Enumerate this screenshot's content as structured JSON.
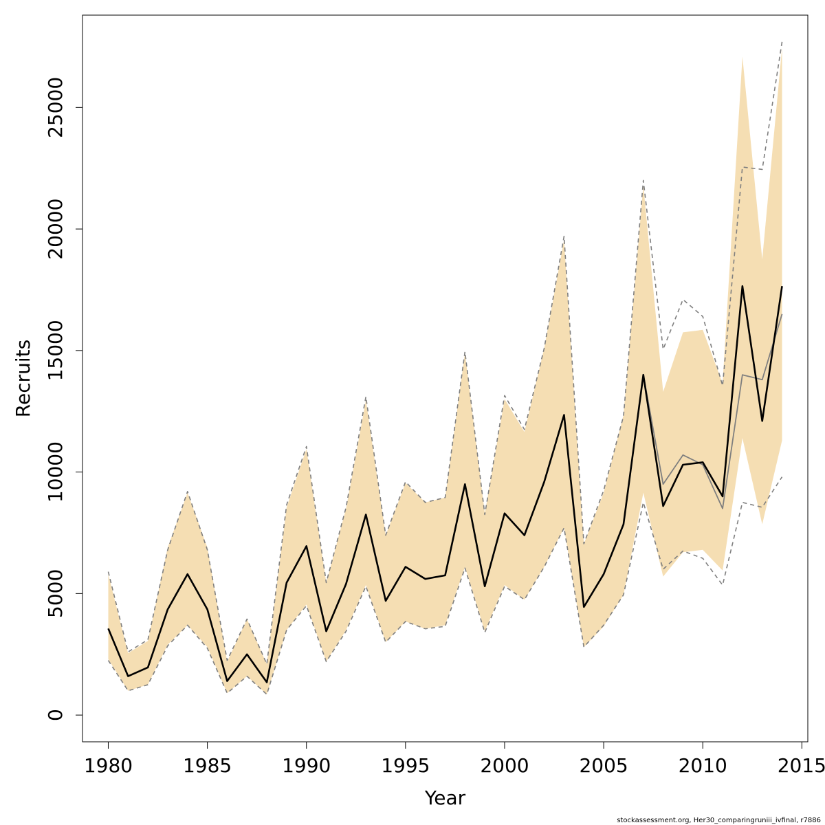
{
  "chart_data": {
    "type": "line",
    "xlabel": "Year",
    "ylabel": "Recruits",
    "xlim": [
      1978.7,
      2015.3
    ],
    "ylim": [
      -1100,
      28800
    ],
    "xticks": [
      1980,
      1985,
      1990,
      1995,
      2000,
      2005,
      2010,
      2015
    ],
    "yticks": [
      0,
      5000,
      10000,
      15000,
      20000,
      25000
    ],
    "grid": false,
    "legend": "none",
    "x": [
      1980,
      1981,
      1982,
      1983,
      1984,
      1985,
      1986,
      1987,
      1988,
      1989,
      1990,
      1991,
      1992,
      1993,
      1994,
      1995,
      1996,
      1997,
      1998,
      1999,
      2000,
      2001,
      2002,
      2003,
      2004,
      2005,
      2006,
      2007,
      2008,
      2009,
      2010,
      2011,
      2012,
      2013,
      2014
    ],
    "series": [
      {
        "role": "estimate",
        "color": "#000000",
        "values": [
          3560,
          1600,
          1960,
          4350,
          5800,
          4350,
          1400,
          2500,
          1350,
          5450,
          6950,
          3450,
          5400,
          8250,
          4700,
          6100,
          5600,
          5750,
          9500,
          5300,
          8300,
          7400,
          9600,
          12350,
          4450,
          5800,
          7850,
          14000,
          8600,
          10300,
          10400,
          9000,
          17650,
          12100,
          17650
        ]
      },
      {
        "role": "estimate-lower",
        "color": "#f5deb3",
        "values": [
          2300,
          1000,
          1250,
          2900,
          3700,
          2800,
          900,
          1600,
          850,
          3500,
          4550,
          2200,
          3500,
          5350,
          3000,
          3850,
          3550,
          3700,
          6100,
          3450,
          5350,
          4750,
          6100,
          7700,
          2800,
          3650,
          4950,
          9150,
          5700,
          6700,
          6800,
          5950,
          11400,
          7850,
          11300
        ]
      },
      {
        "role": "estimate-upper",
        "color": "#f5deb3",
        "values": [
          5800,
          2550,
          3050,
          6900,
          9150,
          6900,
          2200,
          3950,
          2100,
          8550,
          10950,
          5450,
          8500,
          12950,
          7400,
          9550,
          8750,
          8950,
          14900,
          8300,
          13000,
          11650,
          15100,
          19550,
          7050,
          9150,
          12350,
          21800,
          13300,
          15750,
          15850,
          13650,
          27100,
          18750,
          27450
        ]
      },
      {
        "role": "comparison",
        "color": "#7f7f7f",
        "values": [
          3560,
          1600,
          1960,
          4350,
          5800,
          4350,
          1400,
          2500,
          1350,
          5450,
          6950,
          3450,
          5400,
          8250,
          4700,
          6100,
          5600,
          5750,
          9500,
          5300,
          8300,
          7400,
          9600,
          12350,
          4450,
          5800,
          7850,
          14000,
          9500,
          10700,
          10300,
          8500,
          14000,
          13800,
          16500
        ]
      },
      {
        "role": "comparison-lower",
        "color": "#7f7f7f",
        "values": [
          2250,
          1000,
          1250,
          2850,
          3700,
          2750,
          900,
          1600,
          850,
          3500,
          4500,
          2200,
          3450,
          5300,
          3000,
          3850,
          3550,
          3650,
          6050,
          3400,
          5300,
          4750,
          6100,
          7700,
          2800,
          3700,
          4950,
          8750,
          6000,
          6750,
          6450,
          5350,
          8750,
          8550,
          9800
        ]
      },
      {
        "role": "comparison-upper",
        "color": "#7f7f7f",
        "values": [
          5900,
          2600,
          3100,
          6800,
          9200,
          6800,
          2250,
          3950,
          2100,
          8650,
          11050,
          5450,
          8550,
          13100,
          7400,
          9600,
          8750,
          8950,
          14950,
          8250,
          13150,
          11750,
          15100,
          19700,
          7050,
          9250,
          12300,
          22000,
          15050,
          17100,
          16400,
          13550,
          22550,
          22450,
          27700
        ]
      }
    ]
  },
  "footer_text": "stockassessment.org, Her30_comparingruniii_ivfinal, r7886"
}
